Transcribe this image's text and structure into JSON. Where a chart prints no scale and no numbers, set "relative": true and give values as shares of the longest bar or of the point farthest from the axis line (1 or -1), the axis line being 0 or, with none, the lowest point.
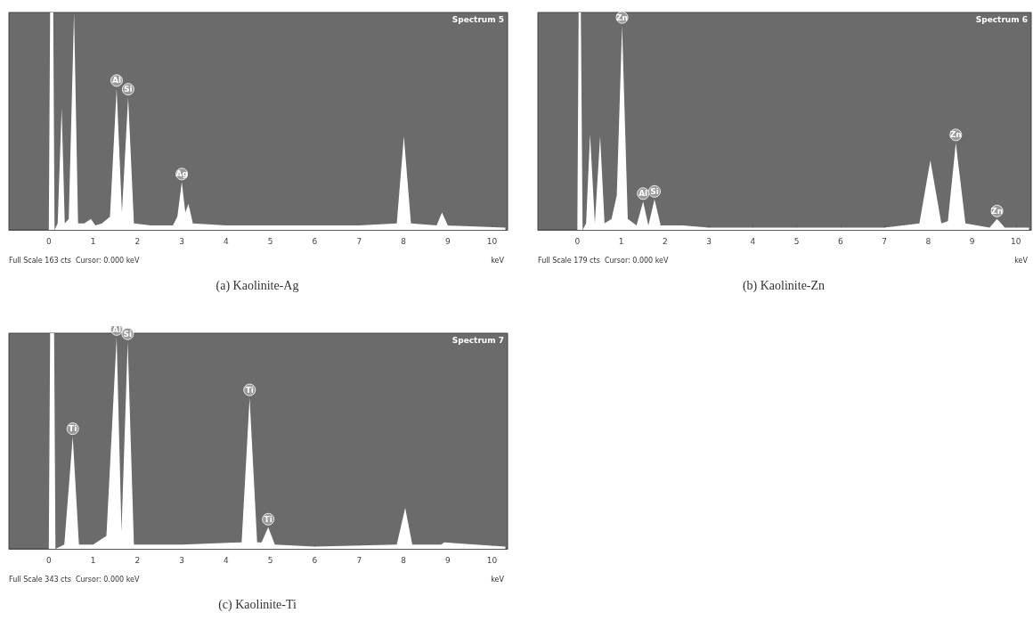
{
  "chart_data": [
    {
      "type": "area",
      "title": "(a) Kaolinite-Ag",
      "xlabel": "keV",
      "relative": true,
      "color": "#ffffff",
      "xlim": [
        -0.9,
        10.35
      ],
      "xticks": [
        0,
        1,
        2,
        3,
        4,
        5,
        6,
        7,
        8,
        9,
        10
      ],
      "x": [
        0,
        0.03,
        0.1,
        0.13,
        0.2,
        0.29,
        0.36,
        0.45,
        0.57,
        0.66,
        0.8,
        0.95,
        1.05,
        1.2,
        1.38,
        1.53,
        1.65,
        1.79,
        1.92,
        2.3,
        2.8,
        2.9,
        3.0,
        3.08,
        3.15,
        3.25,
        4,
        5,
        6,
        7,
        7.85,
        8.01,
        8.17,
        8.75,
        8.87,
        9.0,
        10.3
      ],
      "values": [
        0,
        1,
        1,
        0,
        0.03,
        0.56,
        0.03,
        0.05,
        1,
        0.03,
        0.03,
        0.05,
        0.02,
        0.03,
        0.06,
        0.65,
        0.08,
        0.61,
        0.03,
        0.02,
        0.02,
        0.06,
        0.22,
        0.08,
        0.12,
        0.03,
        0.02,
        0.02,
        0.02,
        0.02,
        0.03,
        0.43,
        0.03,
        0.02,
        0.08,
        0.02,
        0.01
      ],
      "annotations": [
        "Spectrum 5",
        "Full Scale 163 cts  Cursor: 0.000 keV",
        {
          "text": "Al",
          "x": 1.53,
          "y": 0.65
        },
        {
          "text": "Si",
          "x": 1.79,
          "y": 0.61
        },
        {
          "text": "Ag",
          "x": 3.0,
          "y": 0.22
        }
      ]
    },
    {
      "type": "area",
      "title": "(b) Kaolinite-Zn",
      "xlabel": "keV",
      "relative": true,
      "color": "#ffffff",
      "xlim": [
        -0.9,
        10.35
      ],
      "xticks": [
        0,
        1,
        2,
        3,
        4,
        5,
        6,
        7,
        8,
        9,
        10
      ],
      "x": [
        0,
        0.03,
        0.08,
        0.12,
        0.2,
        0.29,
        0.4,
        0.52,
        0.62,
        0.78,
        0.9,
        1.02,
        1.15,
        1.35,
        1.5,
        1.62,
        1.76,
        1.9,
        2.4,
        3,
        5,
        7,
        7.8,
        8.05,
        8.3,
        8.45,
        8.63,
        8.85,
        9.4,
        9.57,
        9.75,
        10.3
      ],
      "values": [
        0,
        1,
        1,
        0,
        0.03,
        0.44,
        0.03,
        0.43,
        0.03,
        0.05,
        0.16,
        0.94,
        0.05,
        0.02,
        0.13,
        0.02,
        0.14,
        0.02,
        0.02,
        0.01,
        0.01,
        0.01,
        0.03,
        0.32,
        0.03,
        0.04,
        0.4,
        0.03,
        0.01,
        0.05,
        0.01,
        0.01
      ],
      "annotations": [
        "Spectrum 6",
        "Full Scale 179 cts  Cursor: 0.000 keV",
        {
          "text": "Zn",
          "x": 1.02,
          "y": 0.94
        },
        {
          "text": "Al",
          "x": 1.5,
          "y": 0.13
        },
        {
          "text": "Si",
          "x": 1.76,
          "y": 0.14
        },
        {
          "text": "Zn",
          "x": 8.63,
          "y": 0.4
        },
        {
          "text": "Zn",
          "x": 9.57,
          "y": 0.05
        }
      ]
    },
    {
      "type": "area",
      "title": "(c) Kaolinite-Ti",
      "xlabel": "keV",
      "relative": true,
      "color": "#ffffff",
      "xlim": [
        -0.9,
        10.35
      ],
      "xticks": [
        0,
        1,
        2,
        3,
        4,
        5,
        6,
        7,
        8,
        9,
        10
      ],
      "x": [
        0,
        0.03,
        0.12,
        0.15,
        0.35,
        0.54,
        0.68,
        1.0,
        1.3,
        1.53,
        1.64,
        1.78,
        1.92,
        3,
        4.35,
        4.53,
        4.7,
        4.8,
        4.95,
        5.1,
        6,
        7.85,
        8.04,
        8.2,
        8.85,
        8.92,
        10.3
      ],
      "values": [
        0,
        1,
        1,
        0,
        0.02,
        0.52,
        0.02,
        0.02,
        0.06,
        0.98,
        0.08,
        0.96,
        0.02,
        0.02,
        0.03,
        0.7,
        0.03,
        0.03,
        0.1,
        0.02,
        0.01,
        0.02,
        0.19,
        0.02,
        0.02,
        0.03,
        0.01
      ],
      "annotations": [
        "Spectrum 7",
        "Full Scale 343 cts  Cursor: 0.000 keV",
        {
          "text": "Ti",
          "x": 0.54,
          "y": 0.52
        },
        {
          "text": "Al",
          "x": 1.53,
          "y": 0.98
        },
        {
          "text": "Si",
          "x": 1.78,
          "y": 0.96
        },
        {
          "text": "Ti",
          "x": 4.53,
          "y": 0.7
        },
        {
          "text": "Ti",
          "x": 4.95,
          "y": 0.1
        }
      ]
    }
  ]
}
